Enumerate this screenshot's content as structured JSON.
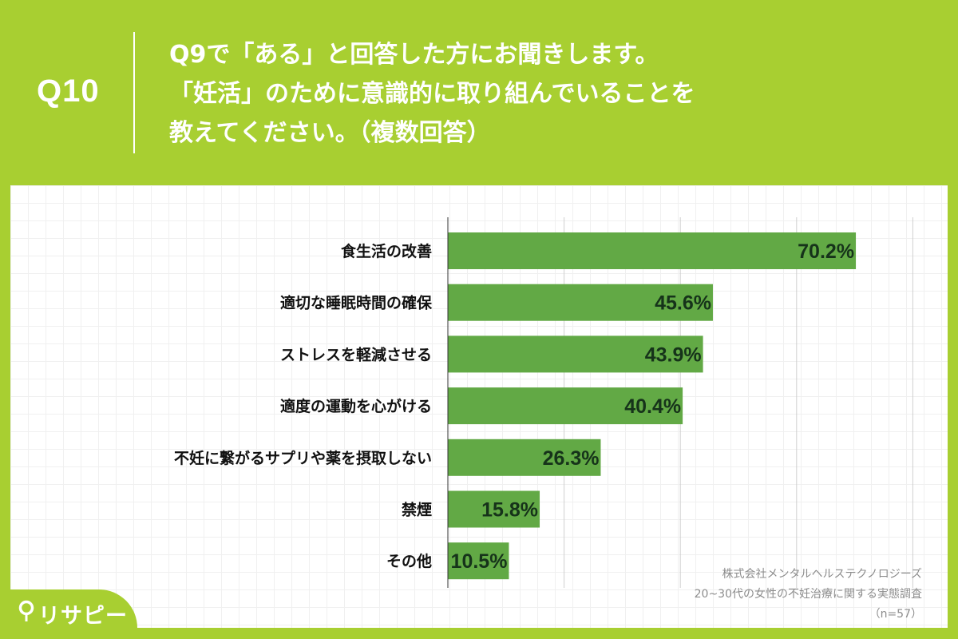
{
  "header": {
    "q_number": "Q10",
    "question_lines": [
      "Q9で「ある」と回答した方にお聞きします。",
      "「妊活」のために意識的に取り組んでいることを",
      "教えてください。（複数回答）"
    ]
  },
  "chart_data": {
    "type": "bar",
    "orientation": "horizontal",
    "categories": [
      "食生活の改善",
      "適切な睡眠時間の確保",
      "ストレスを軽減させる",
      "適度の運動を心がける",
      "不妊に繋がるサプリや薬を摂取しない",
      "禁煙",
      "その他"
    ],
    "values": [
      70.2,
      45.6,
      43.9,
      40.4,
      26.3,
      15.8,
      10.5
    ],
    "value_labels": [
      "70.2%",
      "45.6%",
      "43.9%",
      "40.4%",
      "26.3%",
      "15.8%",
      "10.5%"
    ],
    "xlim": [
      0,
      80
    ],
    "grid": "vertical lines every 20",
    "bar_color": "#62a945"
  },
  "source": {
    "company": "株式会社メンタルヘルステクノロジーズ",
    "survey": "20~30代の女性の不妊治療に関する実態調査",
    "sample": "（n=57）"
  },
  "logo": {
    "text": "リサピー",
    "icon": "pin-icon"
  },
  "colors": {
    "background": "#a8cf31",
    "bar": "#62a945",
    "value_text": "#16331a"
  }
}
